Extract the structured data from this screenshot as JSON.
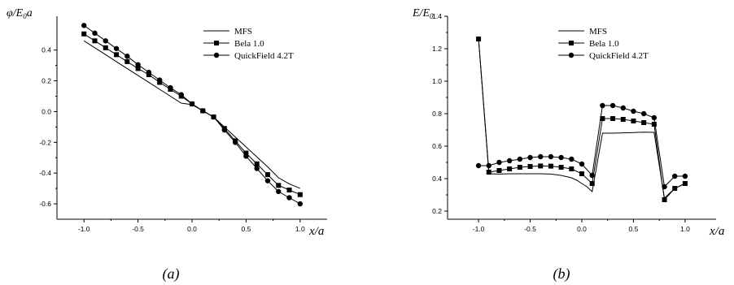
{
  "chart_data": [
    {
      "type": "line",
      "caption": "(a)",
      "ylabel_main": "φ/E",
      "ylabel_sub": "0",
      "ylabel_tail": "a",
      "xlabel": "x/a",
      "xlim": [
        -1.25,
        1.25
      ],
      "ylim": [
        -0.7,
        0.62
      ],
      "x_ticks": [
        -1.0,
        -0.5,
        0.0,
        0.5,
        1.0
      ],
      "y_ticks": [
        -0.6,
        -0.4,
        -0.2,
        0.0,
        0.2,
        0.4
      ],
      "x_tick_labels": [
        "-1.0",
        "-0.5",
        "0.0",
        "0.5",
        "1.0"
      ],
      "y_tick_labels": [
        "-0.6",
        "-0.4",
        "-0.2",
        "0.0",
        "0.2",
        "0.4"
      ],
      "legend_position": "top-right",
      "series": [
        {
          "name": "MFS",
          "marker": "none",
          "x": [
            -1.0,
            -0.9,
            -0.8,
            -0.7,
            -0.6,
            -0.5,
            -0.4,
            -0.3,
            -0.2,
            -0.1,
            0.0,
            0.1,
            0.2,
            0.3,
            0.4,
            0.5,
            0.6,
            0.7,
            0.8,
            0.9,
            1.0
          ],
          "y": [
            0.46,
            0.415,
            0.37,
            0.325,
            0.28,
            0.235,
            0.19,
            0.145,
            0.1,
            0.055,
            0.045,
            0.005,
            -0.035,
            -0.1,
            -0.165,
            -0.23,
            -0.295,
            -0.36,
            -0.43,
            -0.47,
            -0.5
          ]
        },
        {
          "name": "Bela 1.0",
          "marker": "square",
          "x": [
            -1.0,
            -0.9,
            -0.8,
            -0.7,
            -0.6,
            -0.5,
            -0.4,
            -0.3,
            -0.2,
            -0.1,
            0.0,
            0.1,
            0.2,
            0.3,
            0.4,
            0.5,
            0.6,
            0.7,
            0.8,
            0.9,
            1.0
          ],
          "y": [
            0.505,
            0.46,
            0.415,
            0.37,
            0.325,
            0.28,
            0.24,
            0.19,
            0.145,
            0.1,
            0.05,
            0.005,
            -0.035,
            -0.11,
            -0.19,
            -0.27,
            -0.34,
            -0.41,
            -0.48,
            -0.51,
            -0.54
          ]
        },
        {
          "name": "QuickField 4.2T",
          "marker": "circle",
          "x": [
            -1.0,
            -0.9,
            -0.8,
            -0.7,
            -0.6,
            -0.5,
            -0.4,
            -0.3,
            -0.2,
            -0.1,
            0.0,
            0.1,
            0.2,
            0.3,
            0.4,
            0.5,
            0.6,
            0.7,
            0.8,
            0.9,
            1.0
          ],
          "y": [
            0.56,
            0.51,
            0.46,
            0.41,
            0.36,
            0.305,
            0.255,
            0.205,
            0.155,
            0.11,
            0.05,
            0.005,
            -0.035,
            -0.12,
            -0.2,
            -0.29,
            -0.37,
            -0.45,
            -0.52,
            -0.56,
            -0.6
          ]
        }
      ]
    },
    {
      "type": "line",
      "caption": "(b)",
      "ylabel_main": "E/E",
      "ylabel_sub": "0",
      "ylabel_tail": "",
      "xlabel": "x/a",
      "xlim": [
        -1.3,
        1.3
      ],
      "ylim": [
        0.15,
        1.4
      ],
      "x_ticks": [
        -1.0,
        -0.5,
        0.0,
        0.5,
        1.0
      ],
      "y_ticks": [
        0.2,
        0.4,
        0.6,
        0.8,
        1.0,
        1.2,
        1.4
      ],
      "x_tick_labels": [
        "-1.0",
        "-0.5",
        "0.0",
        "0.5",
        "1.0"
      ],
      "y_tick_labels": [
        "0.2",
        "0.4",
        "0.6",
        "0.8",
        "1.0",
        "1.2",
        "1.4"
      ],
      "legend_position": "top-left",
      "series": [
        {
          "name": "MFS",
          "marker": "none",
          "x": [
            -1.0,
            -0.9,
            -0.8,
            -0.7,
            -0.6,
            -0.5,
            -0.4,
            -0.3,
            -0.2,
            -0.1,
            -0.05,
            0.0,
            0.05,
            0.1,
            0.2,
            0.3,
            0.4,
            0.5,
            0.6,
            0.7,
            0.8,
            0.9,
            1.0
          ],
          "y": [
            1.26,
            0.43,
            0.428,
            0.43,
            0.43,
            0.43,
            0.43,
            0.428,
            0.42,
            0.405,
            0.39,
            0.37,
            0.35,
            0.32,
            0.68,
            0.68,
            0.682,
            0.684,
            0.686,
            0.685,
            0.28,
            0.34,
            0.37
          ]
        },
        {
          "name": "Bela 1.0",
          "marker": "square",
          "x": [
            -1.0,
            -0.9,
            -0.8,
            -0.7,
            -0.6,
            -0.5,
            -0.4,
            -0.3,
            -0.2,
            -0.1,
            0.0,
            0.1,
            0.2,
            0.3,
            0.4,
            0.5,
            0.6,
            0.7,
            0.8,
            0.9,
            1.0
          ],
          "y": [
            1.26,
            0.44,
            0.45,
            0.46,
            0.47,
            0.475,
            0.478,
            0.477,
            0.47,
            0.46,
            0.43,
            0.37,
            0.77,
            0.77,
            0.765,
            0.755,
            0.745,
            0.735,
            0.27,
            0.34,
            0.37
          ]
        },
        {
          "name": "QuickField 4.2T",
          "marker": "circle",
          "x": [
            -1.0,
            -0.9,
            -0.8,
            -0.7,
            -0.6,
            -0.5,
            -0.4,
            -0.3,
            -0.2,
            -0.1,
            0.0,
            0.1,
            0.2,
            0.3,
            0.4,
            0.5,
            0.6,
            0.7,
            0.8,
            0.9,
            1.0
          ],
          "y": [
            0.48,
            0.48,
            0.5,
            0.51,
            0.52,
            0.53,
            0.535,
            0.535,
            0.53,
            0.52,
            0.49,
            0.42,
            0.85,
            0.85,
            0.835,
            0.815,
            0.8,
            0.775,
            0.35,
            0.415,
            0.415
          ]
        }
      ]
    }
  ]
}
